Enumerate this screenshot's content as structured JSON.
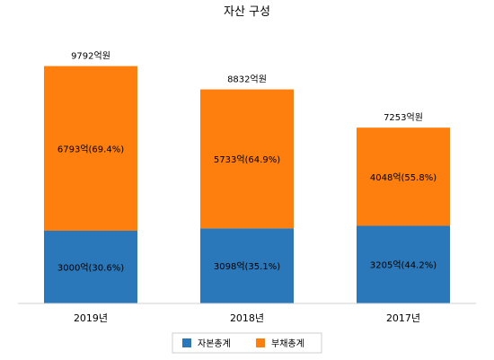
{
  "chart_data": {
    "type": "bar",
    "stacked": true,
    "title": "자산 구성",
    "categories": [
      "2019년",
      "2018년",
      "2017년"
    ],
    "totals": [
      9792,
      8832,
      7253
    ],
    "total_labels": [
      "9792억원",
      "8832억원",
      "7253억원"
    ],
    "series": [
      {
        "name": "자본총계",
        "color": "#2a77b9",
        "values": [
          3000,
          3098,
          3205
        ],
        "labels": [
          "3000억(30.6%)",
          "3098억(35.1%)",
          "3205억(44.2%)"
        ]
      },
      {
        "name": "부채총계",
        "color": "#ff7f0e",
        "values": [
          6793,
          5733,
          4048
        ],
        "labels": [
          "6793억(69.4%)",
          "5733억(64.9%)",
          "4048억(55.8%)"
        ]
      }
    ],
    "ylim": [
      0,
      11000
    ],
    "grid": false,
    "legend": "bottom"
  }
}
